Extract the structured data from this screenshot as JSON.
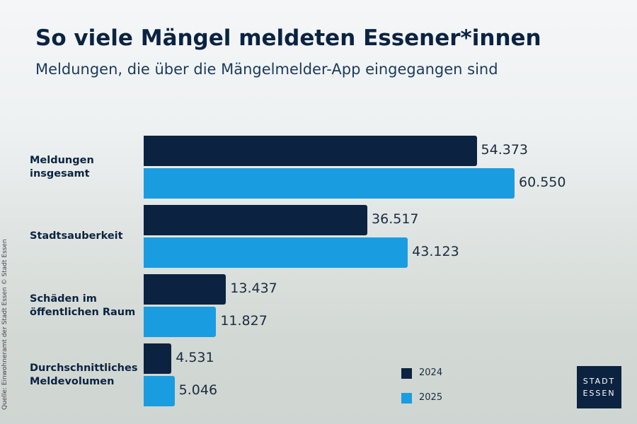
{
  "chart_data": {
    "type": "hbar",
    "title": "So viele Mängel meldeten Essener*innen",
    "subtitle": "Meldungen, die über die Mängelmelder-App eingegangen sind",
    "categories": [
      "Meldungen insgesamt",
      "Stadtsauberkeit",
      "Schäden im öffentlichen Raum",
      "Durchschnittliches Meldevolumen"
    ],
    "series": [
      {
        "name": "2024",
        "color": "#0b2341",
        "values": [
          54373,
          36517,
          13437,
          4531
        ],
        "value_labels": [
          "54.373",
          "36.517",
          "13.437",
          "4.531"
        ]
      },
      {
        "name": "2025",
        "color": "#1a9de0",
        "values": [
          60550,
          43123,
          11827,
          5046
        ],
        "value_labels": [
          "60.550",
          "43.123",
          "11.827",
          "5.046"
        ]
      }
    ],
    "source": "Quelle: Einwohneramt der Stadt Essen © Stadt Essen"
  },
  "logo": {
    "line1": "STADT",
    "line2": "ESSEN"
  }
}
